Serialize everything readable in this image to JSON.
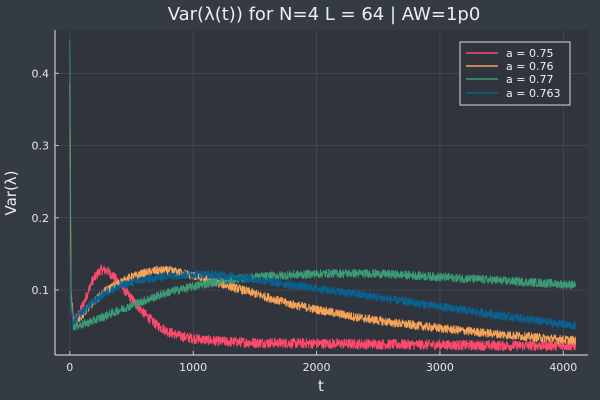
{
  "chart_data": {
    "type": "line",
    "title": "Var(λ(t)) for N=4 L = 64 | AW=1p0",
    "xlabel": "t",
    "ylabel": "Var(λ)",
    "xlim": [
      -120,
      4200
    ],
    "ylim": [
      0.01,
      0.46
    ],
    "xticks": [
      "0",
      "1000",
      "2000",
      "3000",
      "4000"
    ],
    "yticks": [
      "0.1",
      "0.2",
      "0.3",
      "0.4"
    ],
    "grid": true,
    "legend_position": "top-right",
    "colors": {
      "background": "#353b45",
      "plot_area": "#2f343d",
      "grid": "#4a505a",
      "axis": "#c8c8c8"
    },
    "series": [
      {
        "name": "a = 0.75",
        "color": "#ff4a6e",
        "noise": 0.007,
        "spike": 0.39,
        "points": [
          [
            0,
            0.39
          ],
          [
            10,
            0.1
          ],
          [
            30,
            0.058
          ],
          [
            70,
            0.065
          ],
          [
            120,
            0.085
          ],
          [
            180,
            0.112
          ],
          [
            250,
            0.128
          ],
          [
            300,
            0.127
          ],
          [
            360,
            0.118
          ],
          [
            420,
            0.105
          ],
          [
            500,
            0.088
          ],
          [
            600,
            0.068
          ],
          [
            700,
            0.052
          ],
          [
            800,
            0.042
          ],
          [
            900,
            0.036
          ],
          [
            1000,
            0.033
          ],
          [
            1200,
            0.029
          ],
          [
            1500,
            0.027
          ],
          [
            2000,
            0.026
          ],
          [
            2500,
            0.025
          ],
          [
            3000,
            0.024
          ],
          [
            3500,
            0.023
          ],
          [
            4100,
            0.023
          ]
        ]
      },
      {
        "name": "a = 0.76",
        "color": "#f5a45a",
        "noise": 0.006,
        "spike": 0.385,
        "points": [
          [
            0,
            0.385
          ],
          [
            10,
            0.09
          ],
          [
            30,
            0.055
          ],
          [
            100,
            0.065
          ],
          [
            200,
            0.085
          ],
          [
            300,
            0.1
          ],
          [
            400,
            0.11
          ],
          [
            500,
            0.118
          ],
          [
            600,
            0.123
          ],
          [
            700,
            0.127
          ],
          [
            800,
            0.127
          ],
          [
            900,
            0.124
          ],
          [
            1000,
            0.12
          ],
          [
            1200,
            0.11
          ],
          [
            1400,
            0.1
          ],
          [
            1600,
            0.09
          ],
          [
            1800,
            0.08
          ],
          [
            2000,
            0.073
          ],
          [
            2300,
            0.063
          ],
          [
            2600,
            0.055
          ],
          [
            3000,
            0.047
          ],
          [
            3400,
            0.04
          ],
          [
            3800,
            0.034
          ],
          [
            4100,
            0.03
          ]
        ]
      },
      {
        "name": "a = 0.77",
        "color": "#3c9a74",
        "noise": 0.006,
        "spike": 0.445,
        "points": [
          [
            0,
            0.445
          ],
          [
            10,
            0.09
          ],
          [
            30,
            0.05
          ],
          [
            100,
            0.052
          ],
          [
            200,
            0.058
          ],
          [
            400,
            0.072
          ],
          [
            600,
            0.085
          ],
          [
            800,
            0.097
          ],
          [
            1000,
            0.105
          ],
          [
            1200,
            0.112
          ],
          [
            1500,
            0.118
          ],
          [
            1800,
            0.121
          ],
          [
            2100,
            0.123
          ],
          [
            2400,
            0.123
          ],
          [
            2700,
            0.121
          ],
          [
            3000,
            0.118
          ],
          [
            3300,
            0.115
          ],
          [
            3600,
            0.112
          ],
          [
            3900,
            0.109
          ],
          [
            4100,
            0.107
          ]
        ]
      },
      {
        "name": "a = 0.763",
        "color": "#0a6190",
        "noise": 0.006,
        "spike": 0.11,
        "points": [
          [
            0,
            0.11
          ],
          [
            10,
            0.07
          ],
          [
            30,
            0.055
          ],
          [
            100,
            0.07
          ],
          [
            200,
            0.085
          ],
          [
            300,
            0.097
          ],
          [
            400,
            0.105
          ],
          [
            500,
            0.11
          ],
          [
            600,
            0.114
          ],
          [
            700,
            0.117
          ],
          [
            800,
            0.12
          ],
          [
            900,
            0.121
          ],
          [
            1000,
            0.122
          ],
          [
            1200,
            0.121
          ],
          [
            1400,
            0.117
          ],
          [
            1600,
            0.112
          ],
          [
            1800,
            0.107
          ],
          [
            2000,
            0.102
          ],
          [
            2300,
            0.095
          ],
          [
            2600,
            0.087
          ],
          [
            3000,
            0.077
          ],
          [
            3400,
            0.067
          ],
          [
            3800,
            0.057
          ],
          [
            4100,
            0.05
          ]
        ]
      }
    ]
  }
}
